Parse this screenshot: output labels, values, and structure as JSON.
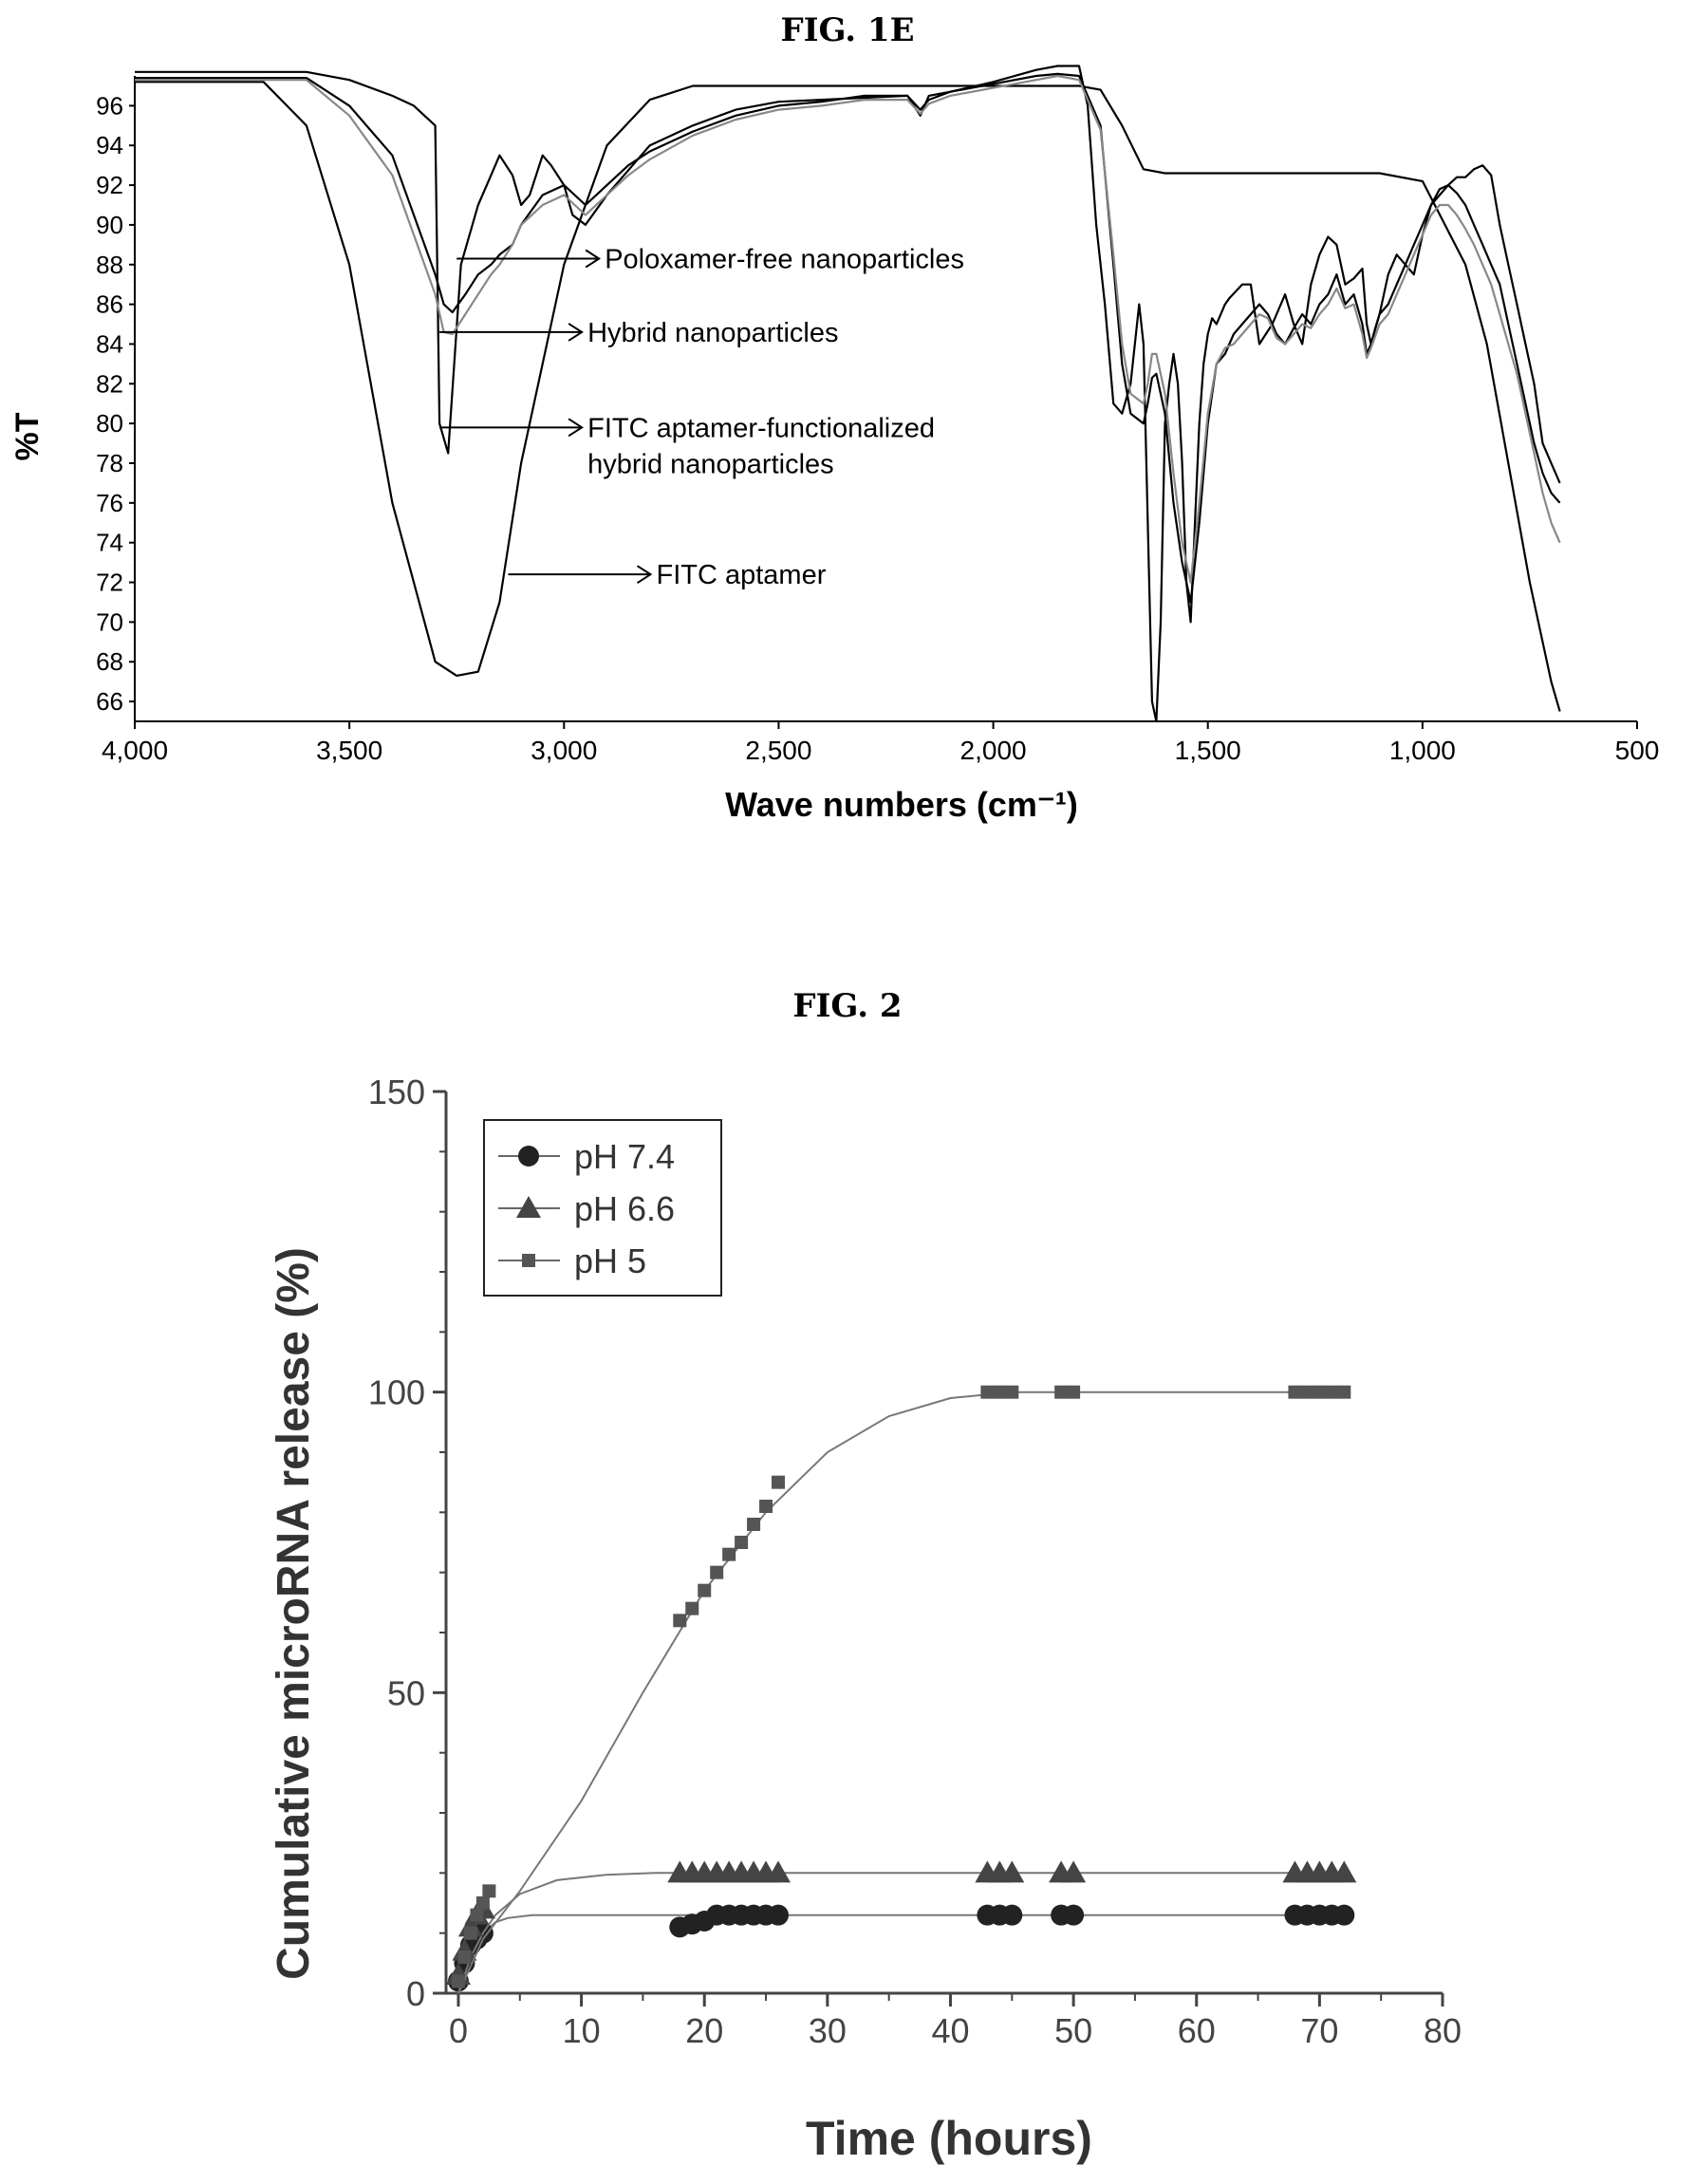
{
  "fig1e": {
    "caption": "FIG. 1E",
    "chart_data": {
      "type": "line",
      "xlabel": "Wave numbers (cm⁻¹)",
      "ylabel": "%T",
      "xlim": [
        4000,
        500
      ],
      "ylim": [
        65,
        97.5
      ],
      "x_ticks": [
        4000,
        3500,
        3000,
        2500,
        2000,
        1500,
        1000,
        500
      ],
      "x_tick_labels": [
        "4,000",
        "3,500",
        "3,000",
        "2,500",
        "2,000",
        "1,500",
        "1,000",
        "500"
      ],
      "y_ticks": [
        66,
        68,
        70,
        72,
        74,
        76,
        78,
        80,
        82,
        84,
        86,
        88,
        90,
        92,
        94,
        96
      ],
      "annotations": [
        {
          "label": "Poloxamer-free nanoparticles",
          "x": 3250,
          "y": 88.3
        },
        {
          "label": "Hybrid nanoparticles",
          "x": 3290,
          "y": 84.6
        },
        {
          "label": "FITC aptamer-functionalized\nhybrid nanoparticles",
          "x": 3290,
          "y": 79.8
        },
        {
          "label": "FITC aptamer",
          "x": 3130,
          "y": 72.4
        }
      ],
      "series": [
        {
          "color": "#000000",
          "x": [
            4000,
            3700,
            3600,
            3500,
            3400,
            3300,
            3250,
            3200,
            3150,
            3100,
            3000,
            2900,
            2800,
            2700,
            2600,
            2500,
            2400,
            2300,
            2200,
            2100,
            2000,
            1900,
            1850,
            1800,
            1750,
            1700,
            1650,
            1600,
            1550,
            1500,
            1400,
            1300,
            1200,
            1100,
            1000,
            900,
            850,
            800,
            750,
            700,
            680
          ],
          "y": [
            97.2,
            97.2,
            95,
            88,
            76,
            68,
            67.3,
            67.5,
            71,
            78,
            88,
            94,
            96.3,
            97,
            97,
            97,
            97,
            97,
            97,
            97,
            97,
            97,
            97,
            97,
            96.8,
            95,
            92.8,
            92.6,
            92.6,
            92.6,
            92.6,
            92.6,
            92.6,
            92.6,
            92.2,
            88,
            84,
            78,
            72,
            67,
            65.5
          ]
        },
        {
          "color": "#000000",
          "x": [
            4000,
            3700,
            3600,
            3500,
            3400,
            3350,
            3300,
            3290,
            3270,
            3240,
            3200,
            3180,
            3150,
            3120,
            3100,
            3080,
            3050,
            3030,
            3000,
            2980,
            2950,
            2900,
            2800,
            2700,
            2600,
            2500,
            2400,
            2300,
            2200,
            2170,
            2150,
            2100,
            2000,
            1900,
            1850,
            1800,
            1780,
            1760,
            1740,
            1720,
            1700,
            1680,
            1660,
            1650,
            1640,
            1630,
            1620,
            1610,
            1600,
            1590,
            1580,
            1570,
            1560,
            1550,
            1540,
            1530,
            1520,
            1510,
            1500,
            1490,
            1480,
            1470,
            1460,
            1450,
            1420,
            1400,
            1380,
            1350,
            1320,
            1300,
            1280,
            1260,
            1240,
            1220,
            1200,
            1180,
            1160,
            1140,
            1130,
            1120,
            1110,
            1100,
            1080,
            1060,
            1040,
            1020,
            1000,
            980,
            960,
            940,
            920,
            900,
            880,
            860,
            840,
            820,
            800,
            780,
            760,
            740,
            720,
            700,
            680
          ],
          "y": [
            97.7,
            97.7,
            97.7,
            97.3,
            96.5,
            96,
            95,
            80,
            78.5,
            88,
            91,
            92,
            93.5,
            92.5,
            91,
            91.5,
            93.5,
            93,
            92,
            90.5,
            90,
            91.5,
            94,
            95,
            95.8,
            96.2,
            96.3,
            96.4,
            96.5,
            95.5,
            96.5,
            96.7,
            97.2,
            97.8,
            98,
            98,
            96,
            90,
            86,
            81,
            80.5,
            82,
            86,
            84,
            75,
            66,
            65,
            70,
            80,
            82,
            83.5,
            82,
            78,
            72,
            70,
            75,
            80,
            83,
            84.5,
            85.3,
            85,
            85.5,
            86,
            86.3,
            87,
            87,
            84,
            85,
            86.5,
            85,
            84,
            87,
            88.5,
            89.4,
            89,
            87,
            87.3,
            87.8,
            85,
            84,
            84.8,
            85.5,
            87.5,
            88.5,
            88,
            87.5,
            89.5,
            91,
            91.5,
            92,
            92.4,
            92.4,
            92.8,
            93,
            92.5,
            90,
            88,
            86,
            84,
            82,
            79,
            78,
            77
          ]
        },
        {
          "color": "#000000",
          "x": [
            4000,
            3700,
            3600,
            3500,
            3400,
            3350,
            3300,
            3280,
            3260,
            3230,
            3200,
            3170,
            3150,
            3120,
            3100,
            3050,
            3000,
            2950,
            2900,
            2850,
            2800,
            2700,
            2600,
            2500,
            2400,
            2300,
            2200,
            2170,
            2150,
            2100,
            2000,
            1900,
            1850,
            1800,
            1750,
            1720,
            1700,
            1680,
            1650,
            1640,
            1630,
            1620,
            1600,
            1580,
            1560,
            1540,
            1520,
            1500,
            1480,
            1460,
            1440,
            1420,
            1400,
            1380,
            1360,
            1340,
            1320,
            1300,
            1280,
            1260,
            1240,
            1220,
            1200,
            1180,
            1160,
            1140,
            1130,
            1120,
            1100,
            1080,
            1060,
            1040,
            1020,
            1000,
            980,
            960,
            940,
            920,
            900,
            880,
            860,
            840,
            820,
            800,
            780,
            760,
            740,
            720,
            700,
            680
          ],
          "y": [
            97.4,
            97.4,
            97.4,
            96,
            93.5,
            90.5,
            87.5,
            86,
            85.6,
            86.5,
            87.5,
            88,
            88.5,
            89,
            90,
            91.5,
            92,
            91,
            92,
            93,
            93.7,
            94.7,
            95.5,
            96,
            96.2,
            96.5,
            96.5,
            95.8,
            96.3,
            96.7,
            97.1,
            97.5,
            97.6,
            97.5,
            95,
            88,
            83,
            80.5,
            80,
            81,
            82.3,
            82.5,
            80.5,
            76,
            73,
            71,
            75,
            80,
            83,
            83.5,
            84.5,
            85,
            85.5,
            86,
            85.5,
            84.5,
            84,
            84.8,
            85.5,
            85,
            86,
            86.5,
            87.5,
            86,
            86.5,
            85,
            83.5,
            84,
            85.5,
            86,
            87,
            88,
            89,
            90,
            91,
            91.8,
            92,
            91.6,
            91,
            90,
            89,
            88,
            87,
            85,
            83,
            81,
            79,
            77.5,
            76.5,
            76
          ]
        },
        {
          "color": "#888888",
          "x": [
            4000,
            3700,
            3600,
            3500,
            3400,
            3350,
            3300,
            3280,
            3260,
            3230,
            3200,
            3170,
            3150,
            3120,
            3100,
            3050,
            3000,
            2950,
            2900,
            2850,
            2800,
            2700,
            2600,
            2500,
            2400,
            2300,
            2200,
            2170,
            2150,
            2100,
            2000,
            1900,
            1850,
            1800,
            1750,
            1720,
            1700,
            1680,
            1650,
            1640,
            1630,
            1620,
            1600,
            1580,
            1560,
            1540,
            1520,
            1500,
            1480,
            1460,
            1440,
            1420,
            1400,
            1380,
            1360,
            1340,
            1320,
            1300,
            1280,
            1260,
            1240,
            1220,
            1200,
            1180,
            1160,
            1140,
            1130,
            1120,
            1100,
            1080,
            1060,
            1040,
            1020,
            1000,
            980,
            960,
            940,
            920,
            900,
            880,
            860,
            840,
            820,
            800,
            780,
            760,
            740,
            720,
            700,
            680
          ],
          "y": [
            97.3,
            97.3,
            97.3,
            95.5,
            92.5,
            89.5,
            86.5,
            84.6,
            84.5,
            85.5,
            86.5,
            87.5,
            88,
            89,
            90,
            91,
            91.5,
            90.5,
            91.5,
            92.5,
            93.3,
            94.5,
            95.3,
            95.8,
            96,
            96.3,
            96.3,
            95.6,
            96.1,
            96.5,
            96.9,
            97.3,
            97.5,
            97.3,
            94.8,
            88.5,
            84,
            81.5,
            81,
            82,
            83.5,
            83.5,
            81.5,
            77.5,
            74,
            72,
            76,
            80.5,
            83,
            83.8,
            84,
            84.5,
            85,
            85.5,
            85.3,
            84.3,
            84,
            84.5,
            85,
            84.8,
            85.5,
            86,
            86.8,
            85.8,
            86,
            84.5,
            83.3,
            83.8,
            85,
            85.5,
            86.5,
            87.5,
            88.5,
            89.5,
            90.5,
            91,
            91,
            90.5,
            89.8,
            89,
            88,
            87,
            85.5,
            84,
            82.5,
            80.5,
            78.5,
            76.5,
            75,
            74
          ]
        }
      ]
    }
  },
  "fig2": {
    "caption": "FIG. 2",
    "chart_data": {
      "type": "line",
      "xlabel": "Time (hours)",
      "ylabel": "Cumulative microRNA release (%)",
      "xlim": [
        -1,
        80
      ],
      "ylim": [
        0,
        150
      ],
      "x_ticks": [
        0,
        10,
        20,
        30,
        40,
        50,
        60,
        70,
        80
      ],
      "y_ticks": [
        0,
        50,
        100,
        150
      ],
      "legend_position": "top-left",
      "series": [
        {
          "name": "pH 7.4",
          "marker": "circle",
          "color": "#222222",
          "x": [
            0,
            0.5,
            1,
            1.5,
            2,
            18,
            19,
            20,
            21,
            22,
            23,
            24,
            25,
            26,
            43,
            44,
            45,
            49,
            50,
            68,
            69,
            70,
            71,
            72
          ],
          "y": [
            2,
            5,
            8,
            9,
            10,
            11,
            11.5,
            12,
            13,
            13,
            13,
            13,
            13,
            13,
            13,
            13,
            13,
            13,
            13,
            13,
            13,
            13,
            13,
            13
          ],
          "fit_x": [
            0,
            1,
            2,
            3,
            4,
            6,
            10,
            15,
            20,
            30,
            40,
            50,
            60,
            72
          ],
          "fit_y": [
            0,
            6.5,
            10,
            11.8,
            12.5,
            13,
            13,
            13,
            13,
            13,
            13,
            13,
            13,
            13
          ]
        },
        {
          "name": "pH 6.6",
          "marker": "triangle",
          "color": "#444444",
          "x": [
            0,
            0.5,
            1,
            1.5,
            2,
            18,
            19,
            20,
            21,
            22,
            23,
            24,
            25,
            26,
            43,
            44,
            45,
            49,
            50,
            68,
            69,
            70,
            71,
            72
          ],
          "y": [
            3,
            7,
            11,
            13,
            14,
            20,
            20,
            20,
            20,
            20,
            20,
            20,
            20,
            20,
            20,
            20,
            20,
            20,
            20,
            20,
            20,
            20,
            20,
            20
          ],
          "fit_x": [
            0,
            1,
            2,
            3,
            5,
            8,
            12,
            16,
            20,
            30,
            40,
            50,
            60,
            72
          ],
          "fit_y": [
            0,
            6,
            10,
            13,
            16.5,
            18.8,
            19.7,
            20,
            20,
            20,
            20,
            20,
            20,
            20
          ]
        },
        {
          "name": "pH 5",
          "marker": "square",
          "color": "#555555",
          "x": [
            0,
            0.5,
            1,
            1.5,
            2,
            2.5,
            18,
            19,
            20,
            21,
            22,
            23,
            24,
            25,
            26,
            43,
            44,
            45,
            49,
            50,
            68,
            69,
            70,
            71,
            72
          ],
          "y": [
            2,
            6,
            10,
            13,
            15,
            17,
            62,
            64,
            67,
            70,
            73,
            75,
            78,
            81,
            85,
            100,
            100,
            100,
            100,
            100,
            100,
            100,
            100,
            100,
            100
          ],
          "fit_x": [
            0,
            2,
            5,
            10,
            15,
            20,
            25,
            30,
            35,
            40,
            45,
            50,
            60,
            72
          ],
          "fit_y": [
            0,
            9,
            17,
            32,
            50,
            67,
            80,
            90,
            96,
            99,
            100,
            100,
            100,
            100
          ]
        }
      ]
    }
  }
}
